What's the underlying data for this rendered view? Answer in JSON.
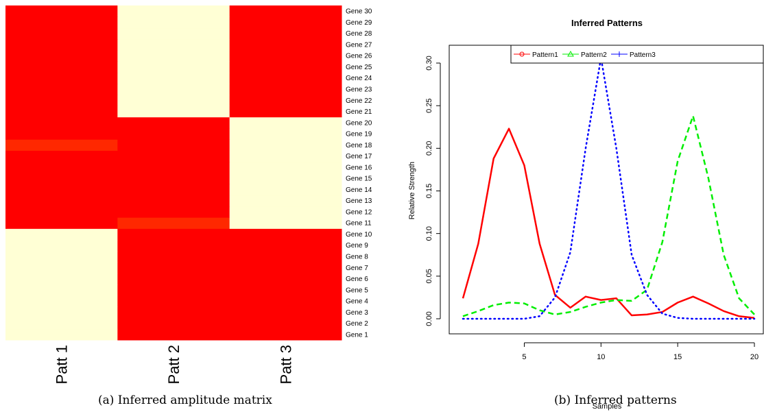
{
  "colors": {
    "high": "#FF0000",
    "medium": "#FF2800",
    "low": "#FFFFD5",
    "pattern1": "#FF0000",
    "pattern2": "#00EE00",
    "pattern3": "#0000FF"
  },
  "captions": {
    "a": "(a) Inferred amplitude matrix",
    "b": "(b) Inferred patterns"
  },
  "chart_data": [
    {
      "type": "heatmap",
      "columns": [
        "Patt 1",
        "Patt 2",
        "Patt 3"
      ],
      "rows": [
        "Gene 1",
        "Gene 2",
        "Gene 3",
        "Gene 4",
        "Gene 5",
        "Gene 6",
        "Gene 7",
        "Gene 8",
        "Gene 9",
        "Gene 10",
        "Gene 11",
        "Gene 12",
        "Gene 13",
        "Gene 14",
        "Gene 15",
        "Gene 16",
        "Gene 17",
        "Gene 18",
        "Gene 19",
        "Gene 20",
        "Gene 21",
        "Gene 22",
        "Gene 23",
        "Gene 24",
        "Gene 25",
        "Gene 26",
        "Gene 27",
        "Gene 28",
        "Gene 29",
        "Gene 30"
      ],
      "values": [
        [
          0,
          1,
          1
        ],
        [
          0,
          1,
          1
        ],
        [
          0,
          1,
          1
        ],
        [
          0,
          1,
          1
        ],
        [
          0,
          1,
          1
        ],
        [
          0,
          1,
          1
        ],
        [
          0,
          1,
          1
        ],
        [
          0,
          1,
          1
        ],
        [
          0,
          1,
          1
        ],
        [
          0,
          1,
          1
        ],
        [
          1,
          0.9,
          0
        ],
        [
          1,
          1,
          0
        ],
        [
          1,
          1,
          0
        ],
        [
          1,
          1,
          0
        ],
        [
          1,
          1,
          0
        ],
        [
          1,
          1,
          0
        ],
        [
          1,
          1,
          0
        ],
        [
          0.9,
          1,
          0
        ],
        [
          1,
          1,
          0
        ],
        [
          1,
          1,
          0
        ],
        [
          1,
          0,
          1
        ],
        [
          1,
          0,
          1
        ],
        [
          1,
          0,
          1
        ],
        [
          1,
          0,
          1
        ],
        [
          1,
          0,
          1
        ],
        [
          1,
          0,
          1
        ],
        [
          1,
          0,
          1
        ],
        [
          1,
          0,
          1
        ],
        [
          1,
          0,
          1
        ],
        [
          1,
          0,
          1
        ]
      ]
    },
    {
      "type": "line",
      "title": "Inferred Patterns",
      "xlabel": "Samples",
      "ylabel": "Relative Strength",
      "xlim": [
        1,
        20
      ],
      "ylim": [
        0,
        0.31
      ],
      "xticks": [
        5,
        10,
        15,
        20
      ],
      "yticks": [
        0.0,
        0.05,
        0.1,
        0.15,
        0.2,
        0.25,
        0.3
      ],
      "legend_position": "top",
      "x": [
        1,
        2,
        3,
        4,
        5,
        6,
        7,
        8,
        9,
        10,
        11,
        12,
        13,
        14,
        15,
        16,
        17,
        18,
        19,
        20
      ],
      "series": [
        {
          "name": "Pattern1",
          "style": "solid",
          "values": [
            0.024,
            0.088,
            0.188,
            0.223,
            0.18,
            0.088,
            0.028,
            0.013,
            0.026,
            0.022,
            0.024,
            0.004,
            0.005,
            0.008,
            0.019,
            0.026,
            0.018,
            0.009,
            0.003,
            0.001
          ]
        },
        {
          "name": "Pattern2",
          "style": "dashed",
          "values": [
            0.003,
            0.009,
            0.016,
            0.019,
            0.018,
            0.01,
            0.005,
            0.008,
            0.014,
            0.019,
            0.022,
            0.021,
            0.034,
            0.09,
            0.185,
            0.238,
            0.165,
            0.075,
            0.024,
            0.005
          ]
        },
        {
          "name": "Pattern3",
          "style": "dotted",
          "values": [
            0.0,
            0.0,
            0.0,
            0.0,
            0.0,
            0.003,
            0.025,
            0.078,
            0.2,
            0.306,
            0.2,
            0.075,
            0.028,
            0.006,
            0.001,
            0.0,
            0.0,
            0.0,
            0.0,
            0.0
          ]
        }
      ]
    }
  ]
}
